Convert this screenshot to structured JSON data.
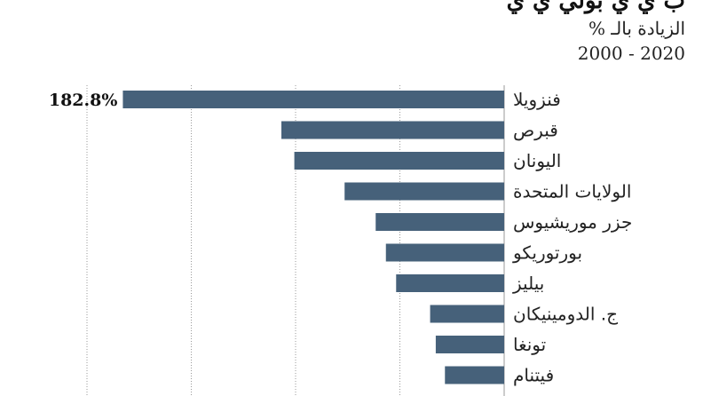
{
  "header": {
    "title_partial": "ب       ي  ي      بولي  ي       ي          ",
    "subtitle_line1": "الزيادة بالـ %",
    "subtitle_line2": "2000 - 2020"
  },
  "chart_data": {
    "type": "bar",
    "orientation": "horizontal",
    "categories": [
      "فنزويلا",
      "قبرص",
      "اليونان",
      "الولايات المتحدة",
      "جزر موريشيوس",
      "بورتوريكو",
      "بيليز",
      "ج. الدومينيكان",
      "تونغا",
      "فيتنام"
    ],
    "values": [
      182.8,
      106.8,
      100.6,
      76.5,
      61.6,
      56.7,
      51.8,
      35.5,
      32.8,
      28.4
    ],
    "value_labels": [
      "182.8%",
      "",
      "",
      "",
      "",
      "",
      "",
      "",
      "",
      ""
    ],
    "xlim": [
      0,
      200
    ],
    "grid": true,
    "bar_color": "#46617a",
    "axis_side": "right"
  }
}
